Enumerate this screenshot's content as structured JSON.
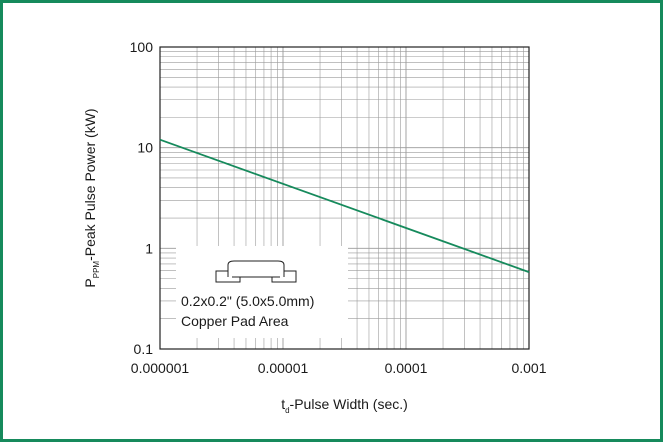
{
  "chart_data": {
    "type": "line",
    "xscale": "log",
    "yscale": "log",
    "xlim": [
      1e-06,
      0.001
    ],
    "ylim": [
      0.1,
      100
    ],
    "x_ticks": [
      "0.000001",
      "0.00001",
      "0.0001",
      "0.001"
    ],
    "y_ticks": [
      "0.1",
      "1",
      "10",
      "100"
    ],
    "xlabel": {
      "main": "t",
      "sub": "d",
      "rest": "-Pulse Width (sec.)"
    },
    "ylabel": {
      "main": "P",
      "sub": "PPM",
      "rest": "-Peak Pulse Power (kW)"
    },
    "grid": true,
    "series": [
      {
        "x": [
          1e-06,
          0.001
        ],
        "y": [
          12,
          0.58
        ]
      }
    ],
    "annotation": {
      "line1": "0.2x0.2\" (5.0x5.0mm)",
      "line2": "Copper Pad Area"
    }
  },
  "colors": {
    "frame": "#168a5c",
    "series": "#168a5c",
    "grid": "#9a9a9a",
    "axis": "#222222"
  }
}
